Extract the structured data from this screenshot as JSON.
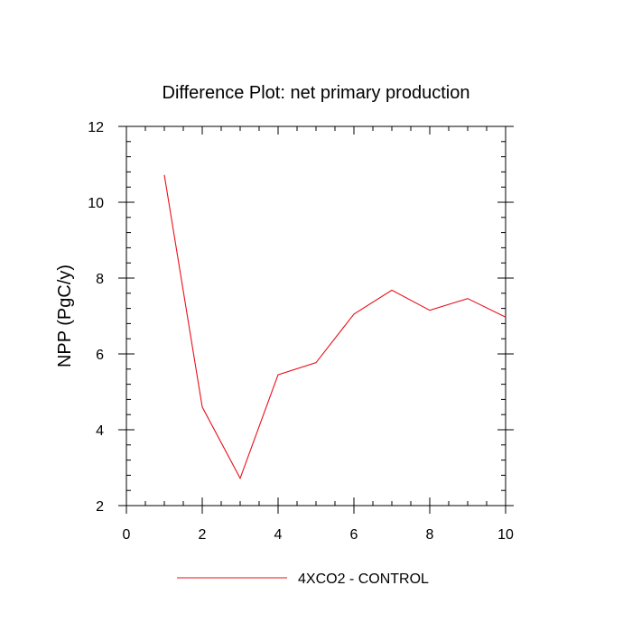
{
  "chart_data": {
    "type": "line",
    "title": "Difference Plot: net primary production",
    "xlabel": "",
    "ylabel": "NPP  (PgC/y)",
    "xlim": [
      0,
      10
    ],
    "ylim": [
      2,
      12
    ],
    "xticks": [
      0,
      2,
      4,
      6,
      8,
      10
    ],
    "yticks": [
      2,
      4,
      6,
      8,
      10,
      12
    ],
    "x_minor_step": 0.5,
    "y_minor_step": 0.4,
    "grid": false,
    "legend_position": "bottom-center",
    "series": [
      {
        "name": "4XCO2 - CONTROL",
        "color": "#e8101a",
        "x": [
          1,
          2,
          3,
          4,
          5,
          6,
          7,
          8,
          9,
          10
        ],
        "y": [
          10.72,
          4.6,
          2.72,
          5.45,
          5.77,
          7.05,
          7.68,
          7.15,
          7.46,
          6.97
        ]
      }
    ]
  }
}
